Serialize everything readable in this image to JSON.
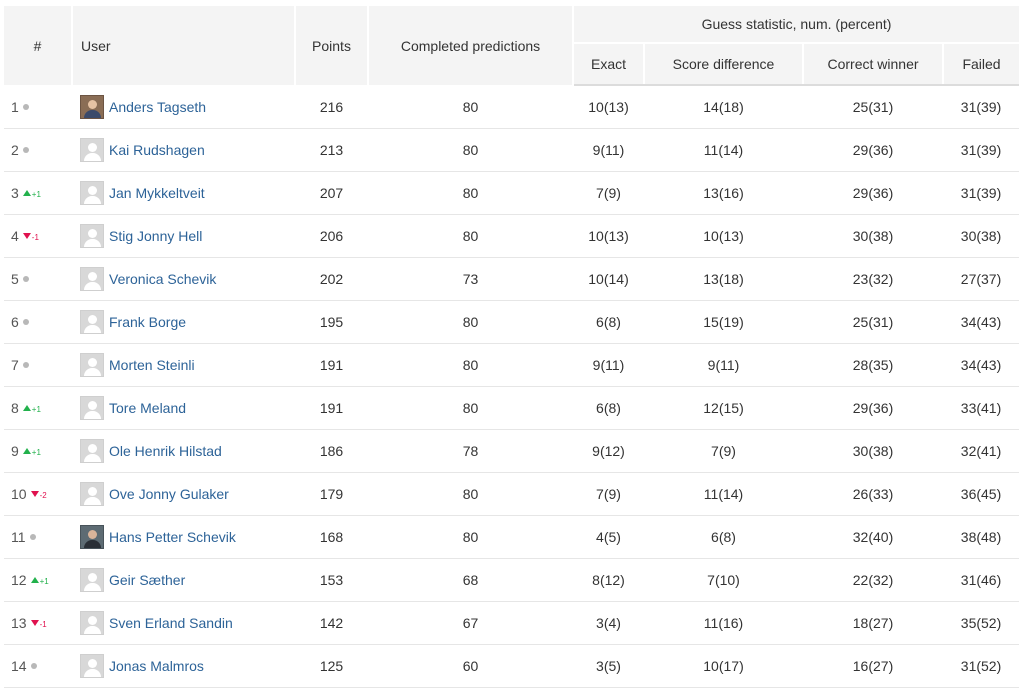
{
  "header": {
    "rank": "#",
    "user": "User",
    "points": "Points",
    "completed": "Completed predictions",
    "guess_group": "Guess statistic, num. (percent)",
    "exact": "Exact",
    "score_difference": "Score difference",
    "correct_winner": "Correct winner",
    "failed": "Failed"
  },
  "colors": {
    "link": "#2d6398",
    "trend_up": "#22b14c",
    "trend_down": "#e0114e",
    "trend_same": "#b8b8b8",
    "header_bg": "#f4f4f4"
  },
  "rows": [
    {
      "rank": "1",
      "trend": "same",
      "delta": "",
      "avatar": "photo-a",
      "user": "Anders Tagseth",
      "points": "216",
      "completed": "80",
      "exact": "10(13)",
      "diff": "14(18)",
      "winner": "25(31)",
      "failed": "31(39)"
    },
    {
      "rank": "2",
      "trend": "same",
      "delta": "",
      "avatar": "default",
      "user": "Kai Rudshagen",
      "points": "213",
      "completed": "80",
      "exact": "9(11)",
      "diff": "11(14)",
      "winner": "29(36)",
      "failed": "31(39)"
    },
    {
      "rank": "3",
      "trend": "up",
      "delta": "+1",
      "avatar": "default",
      "user": "Jan Mykkeltveit",
      "points": "207",
      "completed": "80",
      "exact": "7(9)",
      "diff": "13(16)",
      "winner": "29(36)",
      "failed": "31(39)"
    },
    {
      "rank": "4",
      "trend": "down",
      "delta": "-1",
      "avatar": "default",
      "user": "Stig Jonny Hell",
      "points": "206",
      "completed": "80",
      "exact": "10(13)",
      "diff": "10(13)",
      "winner": "30(38)",
      "failed": "30(38)"
    },
    {
      "rank": "5",
      "trend": "same",
      "delta": "",
      "avatar": "default",
      "user": "Veronica Schevik",
      "points": "202",
      "completed": "73",
      "exact": "10(14)",
      "diff": "13(18)",
      "winner": "23(32)",
      "failed": "27(37)"
    },
    {
      "rank": "6",
      "trend": "same",
      "delta": "",
      "avatar": "default",
      "user": "Frank Borge",
      "points": "195",
      "completed": "80",
      "exact": "6(8)",
      "diff": "15(19)",
      "winner": "25(31)",
      "failed": "34(43)"
    },
    {
      "rank": "7",
      "trend": "same",
      "delta": "",
      "avatar": "default",
      "user": "Morten Steinli",
      "points": "191",
      "completed": "80",
      "exact": "9(11)",
      "diff": "9(11)",
      "winner": "28(35)",
      "failed": "34(43)"
    },
    {
      "rank": "8",
      "trend": "up",
      "delta": "+1",
      "avatar": "default",
      "user": "Tore Meland",
      "points": "191",
      "completed": "80",
      "exact": "6(8)",
      "diff": "12(15)",
      "winner": "29(36)",
      "failed": "33(41)"
    },
    {
      "rank": "9",
      "trend": "up",
      "delta": "+1",
      "avatar": "default",
      "user": "Ole Henrik Hilstad",
      "points": "186",
      "completed": "78",
      "exact": "9(12)",
      "diff": "7(9)",
      "winner": "30(38)",
      "failed": "32(41)"
    },
    {
      "rank": "10",
      "trend": "down",
      "delta": "-2",
      "avatar": "default",
      "user": "Ove Jonny Gulaker",
      "points": "179",
      "completed": "80",
      "exact": "7(9)",
      "diff": "11(14)",
      "winner": "26(33)",
      "failed": "36(45)"
    },
    {
      "rank": "11",
      "trend": "same",
      "delta": "",
      "avatar": "photo-b",
      "user": "Hans Petter Schevik",
      "points": "168",
      "completed": "80",
      "exact": "4(5)",
      "diff": "6(8)",
      "winner": "32(40)",
      "failed": "38(48)"
    },
    {
      "rank": "12",
      "trend": "up",
      "delta": "+1",
      "avatar": "default",
      "user": "Geir Sæther",
      "points": "153",
      "completed": "68",
      "exact": "8(12)",
      "diff": "7(10)",
      "winner": "22(32)",
      "failed": "31(46)"
    },
    {
      "rank": "13",
      "trend": "down",
      "delta": "-1",
      "avatar": "default",
      "user": "Sven Erland Sandin",
      "points": "142",
      "completed": "67",
      "exact": "3(4)",
      "diff": "11(16)",
      "winner": "18(27)",
      "failed": "35(52)"
    },
    {
      "rank": "14",
      "trend": "same",
      "delta": "",
      "avatar": "default",
      "user": "Jonas Malmros",
      "points": "125",
      "completed": "60",
      "exact": "3(5)",
      "diff": "10(17)",
      "winner": "16(27)",
      "failed": "31(52)"
    }
  ]
}
